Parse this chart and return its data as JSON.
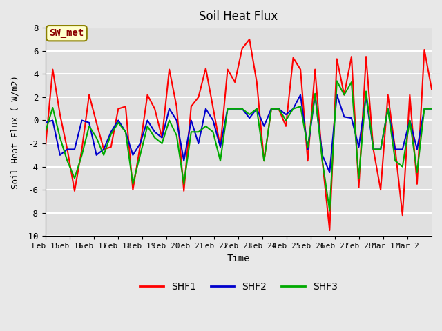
{
  "title": "Soil Heat Flux",
  "ylabel": "Soil Heat Flux ( W/m2)",
  "xlabel": "Time",
  "ylim": [
    -10,
    8
  ],
  "background_color": "#e8e8e8",
  "plot_bg_color": "#e0e0e0",
  "grid_color": "white",
  "annotation_text": "SW_met",
  "annotation_bg": "#ffffcc",
  "annotation_border": "#8B8000",
  "annotation_text_color": "#8B0000",
  "shf1_color": "#ff0000",
  "shf2_color": "#0000cc",
  "shf3_color": "#00aa00",
  "shf1_lw": 1.5,
  "shf2_lw": 1.5,
  "shf3_lw": 1.5,
  "shf1": [
    -2.3,
    4.4,
    0.5,
    -2.5,
    -6.1,
    -2.5,
    2.2,
    -0.2,
    -2.5,
    -2.3,
    1.0,
    1.2,
    -6.0,
    -2.2,
    2.2,
    1.0,
    -1.5,
    4.4,
    1.2,
    -6.1,
    1.2,
    2.0,
    4.5,
    1.1,
    -2.3,
    4.4,
    3.3,
    6.2,
    7.0,
    3.3,
    -3.5,
    1.0,
    1.0,
    -0.5,
    5.4,
    4.4,
    -3.5,
    4.4,
    -3.5,
    -9.5,
    5.3,
    2.2,
    5.5,
    -5.8,
    5.5,
    -2.5,
    -6.0,
    2.2,
    -2.5,
    -8.2,
    2.2,
    -5.5,
    6.1,
    2.7
  ],
  "shf2": [
    -0.2,
    0.0,
    -3.0,
    -2.5,
    -2.5,
    0.0,
    -0.2,
    -3.0,
    -2.5,
    -1.0,
    0.0,
    -1.0,
    -3.0,
    -2.0,
    0.0,
    -1.0,
    -1.5,
    1.0,
    0.0,
    -3.5,
    0.0,
    -2.0,
    1.0,
    0.0,
    -2.3,
    1.0,
    1.0,
    1.0,
    0.2,
    1.0,
    -0.5,
    1.0,
    1.0,
    0.5,
    1.0,
    2.2,
    -2.5,
    2.2,
    -3.0,
    -4.5,
    2.2,
    0.3,
    0.2,
    -2.3,
    2.1,
    -2.5,
    -2.5,
    1.0,
    -2.5,
    -2.5,
    0.0,
    -2.5,
    1.0,
    1.0
  ],
  "shf3": [
    -1.0,
    1.1,
    -1.5,
    -3.5,
    -5.0,
    -3.0,
    -0.5,
    -1.5,
    -3.0,
    -1.2,
    -0.2,
    -1.0,
    -5.5,
    -3.0,
    -0.5,
    -1.5,
    -2.0,
    0.0,
    -1.3,
    -5.5,
    -1.0,
    -1.0,
    -0.5,
    -1.0,
    -3.5,
    1.0,
    1.0,
    1.0,
    0.5,
    1.0,
    -3.5,
    1.0,
    1.0,
    0.0,
    1.0,
    1.2,
    -2.3,
    2.3,
    -3.5,
    -7.8,
    3.4,
    2.2,
    3.3,
    -5.0,
    2.5,
    -2.5,
    -2.5,
    1.0,
    -3.5,
    -4.0,
    0.0,
    -4.5,
    1.0,
    1.0
  ],
  "x_tick_labels": [
    "Feb 15",
    "Feb 16",
    "Feb 17",
    "Feb 18",
    "Feb 19",
    "Feb 20",
    "Feb 21",
    "Feb 22",
    "Feb 23",
    "Feb 24",
    "Feb 25",
    "Feb 26",
    "Feb 27",
    "Feb 28",
    "Mar 1",
    "Mar 2"
  ],
  "yticks": [
    -10,
    -8,
    -6,
    -4,
    -2,
    0,
    2,
    4,
    6,
    8
  ],
  "legend_labels": [
    "SHF1",
    "SHF2",
    "SHF3"
  ],
  "font_family": "monospace"
}
